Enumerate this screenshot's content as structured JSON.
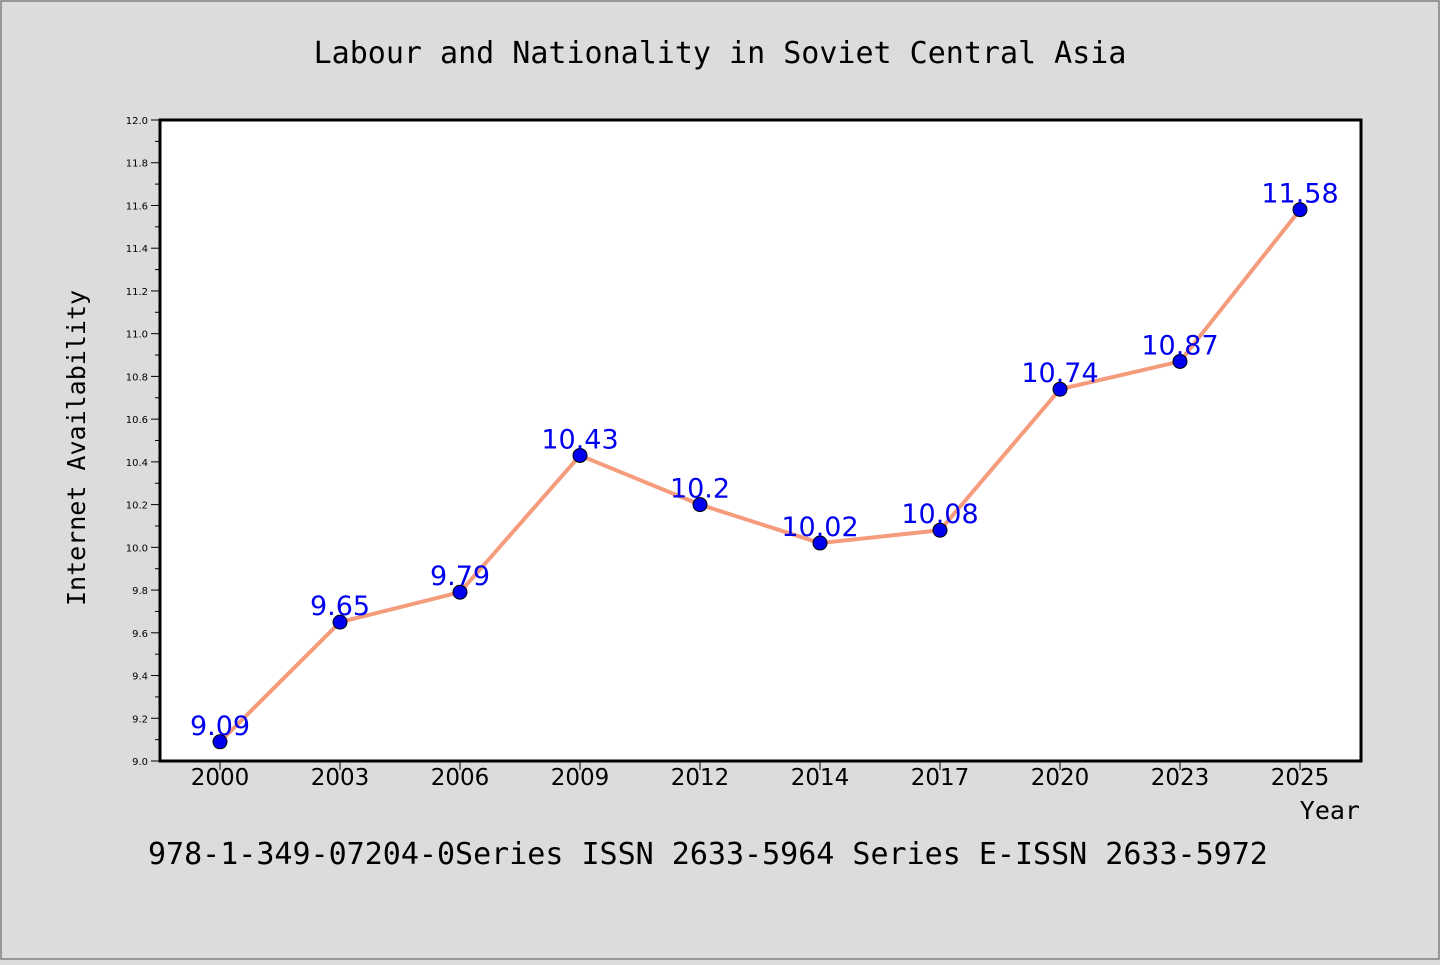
{
  "chart_data": {
    "type": "line",
    "title": "Labour and Nationality in Soviet Central Asia",
    "xlabel": "Year",
    "ylabel": "Internet Availability",
    "categories": [
      "2000",
      "2003",
      "2006",
      "2009",
      "2012",
      "2014",
      "2017",
      "2020",
      "2023",
      "2025"
    ],
    "series": [
      {
        "values": [
          9.09,
          9.65,
          9.79,
          10.43,
          10.2,
          10.02,
          10.08,
          10.74,
          10.87,
          11.58
        ],
        "data_labels": [
          "9.09",
          "9.65",
          "9.79",
          "10.43",
          "10.2",
          "10.02",
          "10.08",
          "10.74",
          "10.87",
          "11.58"
        ],
        "line_color": "#f59c7c",
        "marker_color": "#0000ee"
      }
    ],
    "ylim": [
      9.0,
      12.0
    ],
    "y_ticks": [
      "9.0",
      "9.2",
      "9.4",
      "9.6",
      "9.8",
      "10.0",
      "10.2",
      "10.4",
      "10.6",
      "10.8",
      "11.0",
      "11.2",
      "11.4",
      "11.6",
      "11.8",
      "12.0"
    ],
    "grid": false,
    "legend": "none",
    "label_color": "#0000ee"
  },
  "footer": {
    "text": "978-1-349-07204-0Series ISSN 2633-5964 Series E-ISSN 2633-5972"
  },
  "colors": {
    "background": "#dcdcdc",
    "plot_background": "#ffffff",
    "axis": "#000000"
  }
}
